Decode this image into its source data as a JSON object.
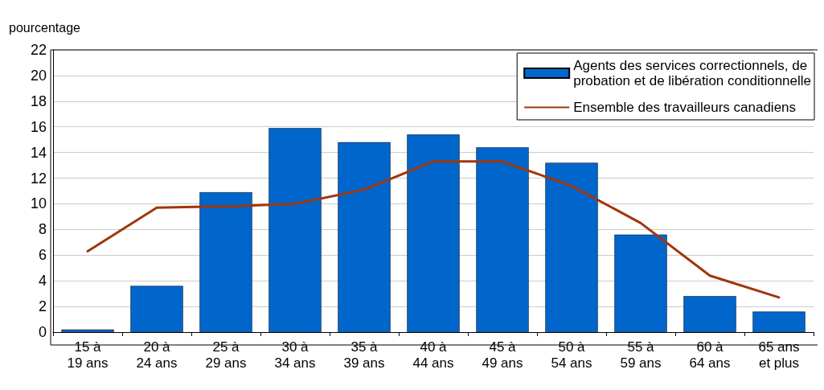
{
  "chart_data": {
    "type": "bar",
    "ylabel": "pourcentage",
    "categories": [
      "15 à\n19 ans",
      "20 à\n24 ans",
      "25 à\n29 ans",
      "30 à\n34 ans",
      "35 à\n39 ans",
      "40 à\n44 ans",
      "45 à\n49 ans",
      "50 à\n54 ans",
      "55 à\n59 ans",
      "60 à\n64 ans",
      "65 ans\net plus"
    ],
    "series": [
      {
        "name": "Agents des services correctionnels, de\nprobation et de libération conditionnelle",
        "color": "#0066cc",
        "values": [
          0.2,
          3.6,
          10.9,
          15.9,
          14.8,
          15.4,
          14.4,
          13.2,
          7.6,
          2.8,
          1.6
        ]
      },
      {
        "name": "Ensemble des travailleurs canadiens",
        "type": "line",
        "color": "#a0360a",
        "values": [
          6.3,
          9.7,
          9.8,
          10.0,
          11.1,
          13.3,
          13.3,
          11.4,
          8.5,
          4.4,
          2.7
        ]
      }
    ],
    "ylim": [
      0,
      22
    ],
    "yticks": [
      0,
      2,
      4,
      6,
      8,
      10,
      12,
      14,
      16,
      18,
      20,
      22
    ],
    "grid": "y",
    "legend": "top right",
    "marker": "none",
    "line_style": "solid"
  }
}
